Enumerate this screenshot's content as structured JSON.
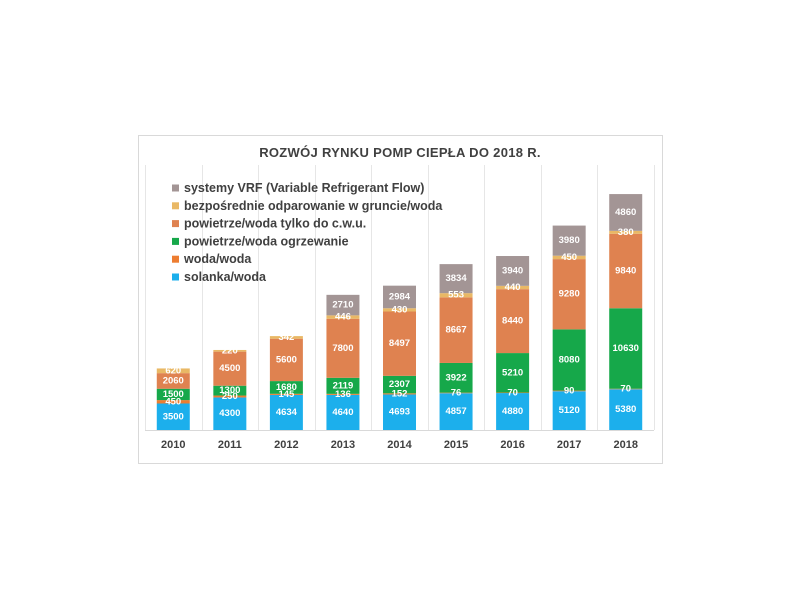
{
  "chart_data": {
    "type": "bar",
    "stacked": true,
    "title": "ROZWÓJ RYNKU POMP CIEPŁA DO 2018 R.",
    "xlabel": "",
    "ylabel": "",
    "categories": [
      "2010",
      "2011",
      "2012",
      "2013",
      "2014",
      "2015",
      "2016",
      "2017",
      "2018"
    ],
    "ylim": [
      0,
      35000
    ],
    "grid": {
      "x": true,
      "y": false
    },
    "legend_position": "top-left",
    "data_labels": true,
    "series": [
      {
        "name": "solanka/woda",
        "color": "#1CAFEC",
        "values": [
          3500,
          4300,
          4634,
          4640,
          4693,
          4857,
          4880,
          5120,
          5380
        ]
      },
      {
        "name": "woda/woda",
        "color": "#ED7D31",
        "values": [
          450,
          250,
          145,
          136,
          152,
          76,
          70,
          90,
          70
        ]
      },
      {
        "name": "powietrze/woda ogrzewanie",
        "color": "#16A84A",
        "values": [
          1500,
          1300,
          1680,
          2119,
          2307,
          3922,
          5210,
          8080,
          10630
        ]
      },
      {
        "name": "powietrze/woda tylko do c.w.u.",
        "color": "#DF8250",
        "values": [
          2060,
          4500,
          5600,
          7800,
          8497,
          8667,
          8440,
          9280,
          9840
        ]
      },
      {
        "name": "bezpośrednie odparowanie w gruncie/woda",
        "color": "#E9B865",
        "values": [
          620,
          220,
          342,
          446,
          430,
          553,
          440,
          450,
          380
        ]
      },
      {
        "name": "systemy VRF (Variable Refrigerant Flow)",
        "color": "#A39595",
        "values": [
          null,
          null,
          null,
          2710,
          2984,
          3834,
          3940,
          3980,
          4860
        ]
      }
    ]
  }
}
